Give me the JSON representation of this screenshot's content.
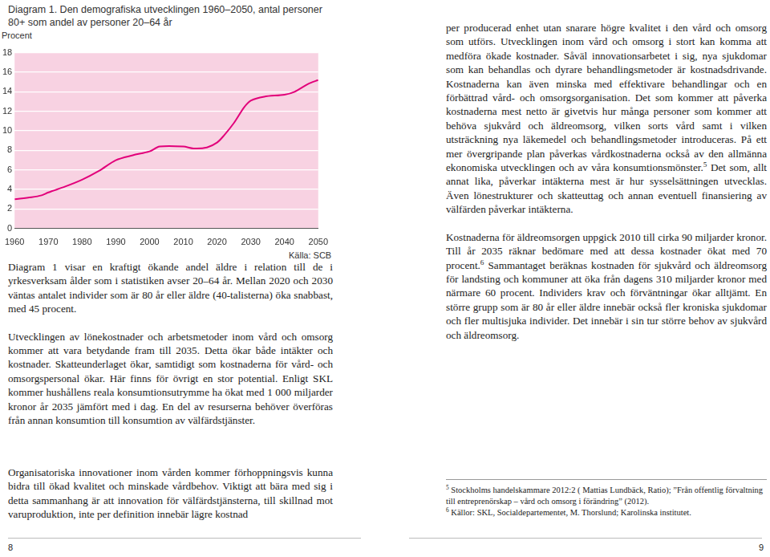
{
  "chart_data": {
    "type": "line",
    "title": "Diagram 1. Den demografiska utvecklingen 1960–2050, antal personer 80+ som andel av personer 20–64 år",
    "y_label": "Procent",
    "source": "Källa: SCB",
    "x": [
      1960,
      1965,
      1968,
      1970,
      1975,
      1980,
      1985,
      1990,
      1995,
      2000,
      2003,
      2010,
      2013,
      2017,
      2020,
      2022,
      2025,
      2028,
      2030,
      2034,
      2040,
      2043,
      2047,
      2050
    ],
    "values": [
      3.0,
      3.2,
      3.4,
      3.7,
      4.3,
      5.0,
      5.9,
      7.0,
      7.5,
      7.9,
      8.4,
      8.4,
      8.2,
      8.3,
      8.8,
      9.5,
      10.8,
      12.4,
      13.1,
      13.5,
      13.7,
      14.0,
      14.8,
      15.2
    ],
    "color": "#e2007a",
    "xlim": [
      1960,
      2050
    ],
    "xticks": [
      1960,
      1970,
      1980,
      1990,
      2000,
      2010,
      2020,
      2030,
      2040,
      2050
    ],
    "ylim": [
      0,
      18
    ],
    "yticks": [
      0,
      2,
      4,
      6,
      8,
      10,
      12,
      14,
      16,
      18
    ],
    "grid": true
  },
  "left_page": {
    "paragraphs": [
      [
        {
          "text": "Diagram 1 visar en kraftigt ökande andel äldre i relation till de i yrkesverksam ålder som i statistiken avser 20–64 år. Mellan 2020 och 2030 väntas antalet individer som är 80 år eller äldre (40-talisterna) öka snabbast, med 45 procent."
        }
      ],
      [
        {
          "text": "Utvecklingen av lönekostnader och arbetsmetoder inom vård och omsorg kommer att vara betydande fram till 2035. Detta ökar både intäkter och kostnader. Skatteunderlaget ökar, samtidigt som kostnaderna för vård- och omsorgspersonal ökar. Här finns för övrigt en stor potential. Enligt SKL kommer hushållens reala konsumtionsutrymme ha ökat med 1 000 miljarder kronor år 2035 jämfört med i dag. En del av resurserna behöver överföras från annan konsumtion till konsumtion av välfärdstjänster."
        }
      ],
      [
        {
          "text": "Organisatoriska innovationer inom vården kommer förhoppningsvis kunna bidra till ökad kvalitet och minskade vårdbehov. Viktigt att bära med sig i detta sammanhang är att innovation för välfärdstjänsterna, till skillnad mot varuproduktion, inte per definition innebär lägre kostnad"
        }
      ]
    ],
    "page_number": "8"
  },
  "right_page": {
    "paragraphs": [
      [
        {
          "text": "per producerad enhet utan snarare högre kvalitet i den vård och omsorg som utförs. Utvecklingen inom vård och omsorg i stort kan komma att medföra ökade kostnader. Såväl innovationsarbetet i sig, nya sjukdomar som kan behandlas och dyrare behandlingsmetoder är kostnadsdrivande. Kostnaderna kan även minska med effektivare behandlingar och en förbättrad vård- och omsorgsorganisation. Det som kommer att påverka kostnaderna mest netto är givetvis hur många personer som kommer att behöva sjukvård och äldreomsorg, vilken sorts vård samt i vilken utsträckning nya läkemedel och behandlingsmetoder introduceras. På ett mer övergripande plan påverkas vårdkostnaderna också av den allmänna ekonomiska utvecklingen och av våra konsumtionsmönster."
        },
        {
          "sup": "5"
        },
        {
          "text": " Det som, allt annat lika, påverkar intäkterna mest är hur sysselsättningen utvecklas. Även lönestrukturer och skatteuttag och annan eventuell finansiering av välfärden påverkar intäkterna."
        }
      ],
      [
        {
          "text": "Kostnaderna för äldreomsorgen uppgick 2010 till cirka 90 miljarder kronor. Till år 2035 räknar bedömare med att dessa kostnader ökat med 70 procent."
        },
        {
          "sup": "6"
        },
        {
          "text": " Sammantaget beräknas kostnaden för sjukvård och äldreomsorg för landsting och kommuner att öka från dagens 310 miljarder kronor med närmare 60 procent. Individers krav och förväntningar ökar alltjämt. En större grupp som är 80 år eller äldre innebär också fler kroniska sjukdomar och fler multisjuka individer. Det innebär i sin tur större behov av sjukvård och äldreomsorg."
        }
      ]
    ],
    "footnotes": [
      [
        {
          "sup": "5"
        },
        {
          "text": " Stockholms handelskammare 2012:2 ( Mattias Lundbäck, Ratio); ”Från offentlig förvaltning till entreprenörskap – vård och omsorg i förändring” (2012)."
        }
      ],
      [
        {
          "sup": "6"
        },
        {
          "text": " Källor: SKL, Socialdepartementet, M. Thorslund; Karolinska institutet."
        }
      ]
    ],
    "page_number": "9"
  }
}
